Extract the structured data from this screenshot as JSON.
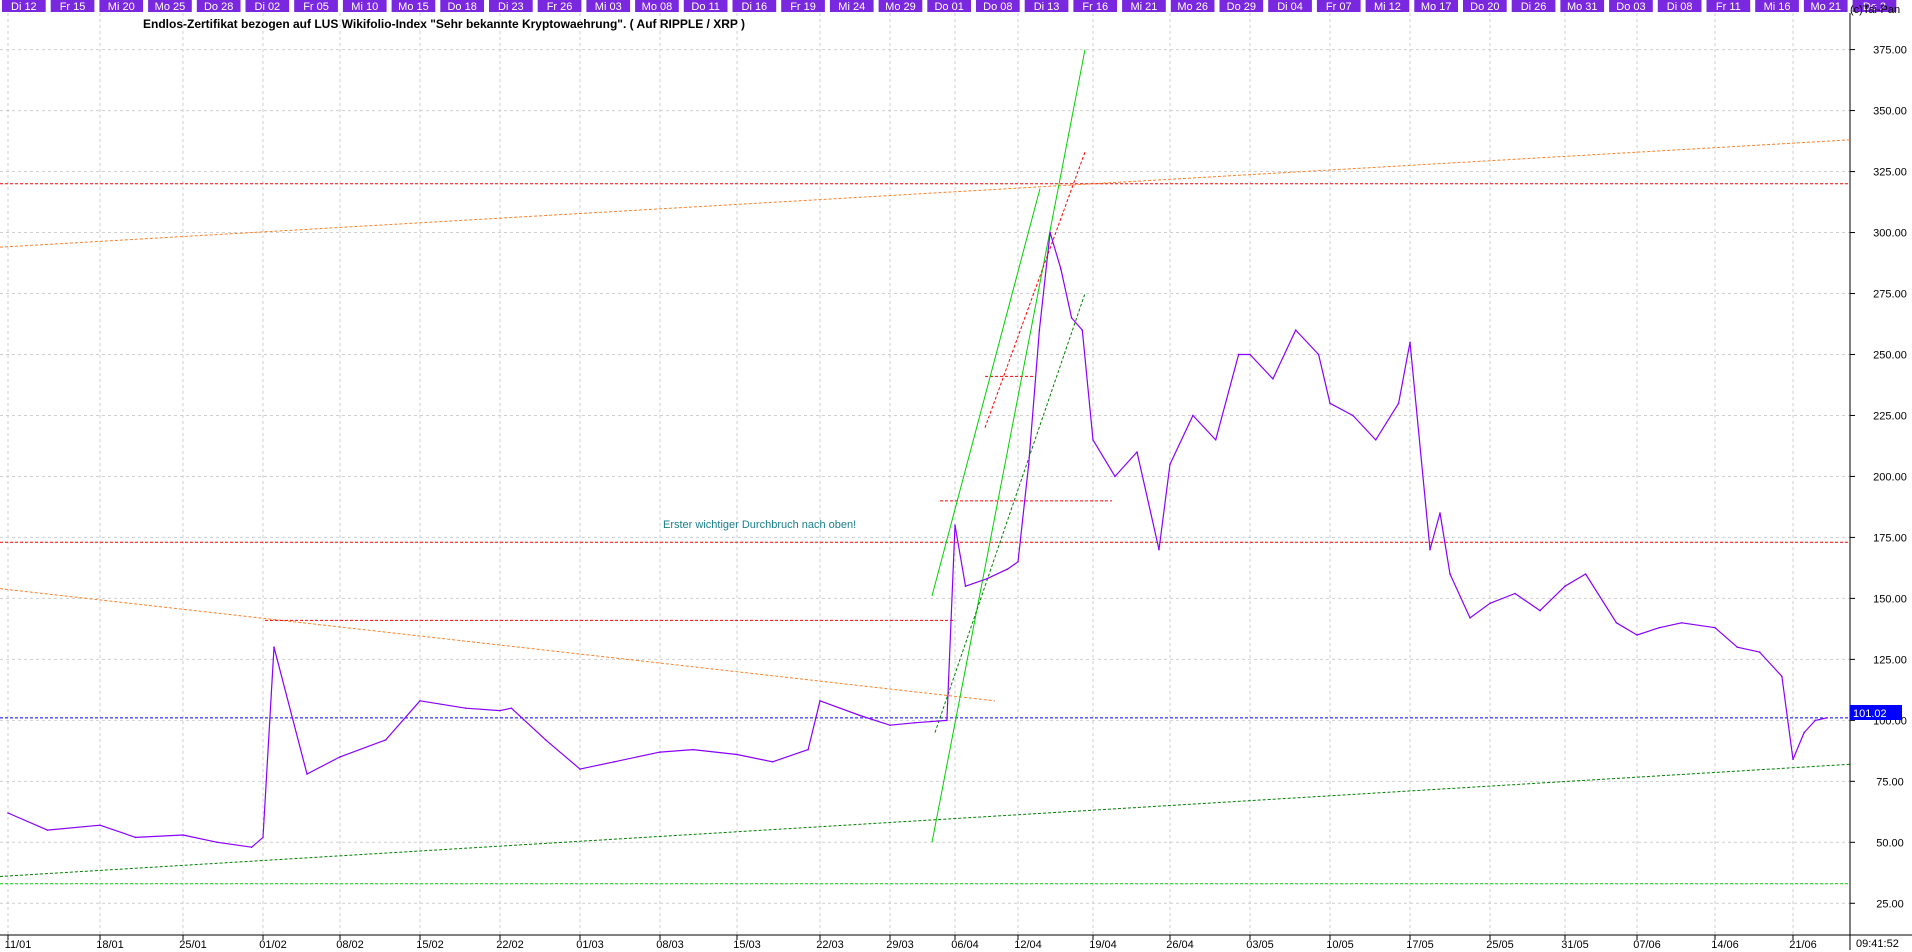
{
  "copyright": "(c)Tai-Pan",
  "colors": {
    "price": "#8800ff",
    "day_bar": "#7a28e0",
    "grid": "#cfcfcf",
    "red_line": "#ff0000",
    "orange_line": "#ff7f27",
    "green_line": "#00d000",
    "dark_green_line": "#008000",
    "blue_line": "#0000ff",
    "annotation": "#1a7f8a"
  },
  "top_day_labels": [
    "Di 12",
    "Fr 15",
    "Mi 20",
    "Mo 25",
    "Do 28",
    "Di 02",
    "Fr 05",
    "Mi 10",
    "Mo 15",
    "Do 18",
    "Di 23",
    "Fr 26",
    "Mi 03",
    "Mo 08",
    "Do 11",
    "Di 16",
    "Fr 19",
    "Mi 24",
    "Mo 29",
    "Do 01",
    "Do 08",
    "Di 13",
    "Fr 16",
    "Mi 21",
    "Mo 26",
    "Do 29",
    "Di 04",
    "Fr 07",
    "Mi 12",
    "Mo 17",
    "Do 20",
    "Di 26",
    "Mo 31",
    "Do 03",
    "Di 08",
    "Fr 11",
    "Mi 16",
    "Mo 21",
    "Do 2"
  ],
  "bottom_time": "09:41:52",
  "chart_data": {
    "type": "line",
    "title": "Endlos-Zertifikat bezogen auf LUS Wikifolio-Index \"Sehr bekannte Kryptowaehrung\". ( Auf RIPPLE / XRP )",
    "x_tick_labels": [
      "11/01",
      "18/01",
      "25/01",
      "01/02",
      "08/02",
      "15/02",
      "22/02",
      "01/03",
      "08/03",
      "15/03",
      "22/03",
      "29/03",
      "06/04",
      "12/04",
      "19/04",
      "26/04",
      "03/05",
      "10/05",
      "17/05",
      "25/05",
      "31/05",
      "07/06",
      "14/06",
      "21/06"
    ],
    "y_tick_labels": [
      "25.00",
      "50.00",
      "75.00",
      "100.00",
      "125.00",
      "150.00",
      "175.00",
      "200.00",
      "225.00",
      "250.00",
      "275.00",
      "300.00",
      "325.00",
      "350.00",
      "375.00"
    ],
    "ylim": [
      12,
      390
    ],
    "last_price_label": "101.02",
    "annotation": "Erster wichtiger Durchbruch nach oben!",
    "series": [
      {
        "x": [
          "11/01",
          "14/01",
          "18/01",
          "21/01",
          "25/01",
          "28/01",
          "31/01",
          "01/02",
          "02/02",
          "05/02",
          "08/02",
          "12/02",
          "15/02",
          "19/02",
          "22/02",
          "23/02",
          "26/02",
          "01/03",
          "04/03",
          "08/03",
          "11/03",
          "15/03",
          "18/03",
          "21/03",
          "22/03",
          "26/03",
          "29/03",
          "01/04",
          "05/04",
          "06/04",
          "07/04",
          "09/04",
          "11/04",
          "12/04",
          "13/04",
          "14/04",
          "15/04",
          "16/04",
          "17/04",
          "18/04",
          "19/04",
          "21/04",
          "23/04",
          "25/04",
          "26/04",
          "28/04",
          "30/04",
          "02/05",
          "03/05",
          "05/05",
          "07/05",
          "09/05",
          "10/05",
          "12/05",
          "14/05",
          "16/05",
          "17/05",
          "19/05",
          "20/05",
          "21/05",
          "23/05",
          "25/05",
          "27/05",
          "29/05",
          "31/05",
          "02/06",
          "05/06",
          "07/06",
          "09/06",
          "11/06",
          "14/06",
          "16/06",
          "18/06",
          "20/06",
          "21/06",
          "22/06",
          "23/06",
          "24/06"
        ],
        "values": [
          62,
          55,
          57,
          52,
          53,
          50,
          48,
          52,
          130,
          78,
          85,
          92,
          108,
          105,
          104,
          105,
          92,
          80,
          83,
          87,
          88,
          86,
          83,
          88,
          108,
          102,
          98,
          99,
          100,
          180,
          155,
          158,
          162,
          165,
          205,
          260,
          300,
          285,
          265,
          260,
          215,
          200,
          210,
          170,
          205,
          225,
          215,
          250,
          250,
          240,
          260,
          250,
          230,
          225,
          215,
          230,
          255,
          170,
          185,
          160,
          142,
          148,
          152,
          145,
          155,
          160,
          140,
          135,
          138,
          140,
          138,
          130,
          128,
          118,
          84,
          95,
          100,
          101
        ]
      }
    ],
    "horizontal_lines": [
      {
        "y": 320,
        "style": "red dotted"
      },
      {
        "y": 173,
        "style": "red dotted"
      },
      {
        "y": 101.02,
        "style": "blue dotted"
      },
      {
        "y": 33,
        "style": "green dotted"
      }
    ]
  }
}
